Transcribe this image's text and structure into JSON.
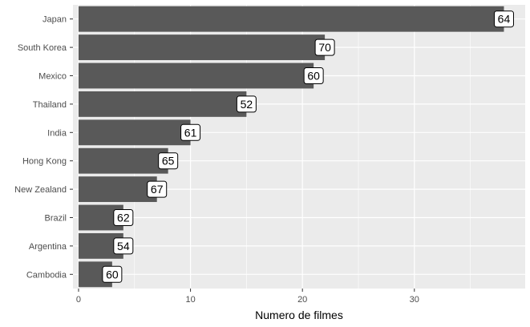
{
  "chart_data": {
    "type": "bar",
    "orientation": "horizontal",
    "title": "",
    "xlabel": "Numero de filmes",
    "ylabel": "",
    "categories": [
      "Japan",
      "South Korea",
      "Mexico",
      "Thailand",
      "India",
      "Hong Kong",
      "New Zealand",
      "Brazil",
      "Argentina",
      "Cambodia"
    ],
    "values": [
      38,
      22,
      21,
      15,
      10,
      8,
      7,
      4,
      4,
      3
    ],
    "data_labels": [
      "64",
      "70",
      "60",
      "52",
      "61",
      "65",
      "67",
      "62",
      "54",
      "60"
    ],
    "xlim": [
      -0.5,
      39.9
    ],
    "xticks": [
      0,
      10,
      20,
      30
    ],
    "xtick_labels": [
      "0",
      "10",
      "20",
      "30"
    ],
    "grid": true,
    "legend": "none",
    "colors": {
      "panel": "#ebebeb",
      "grid_major": "#ffffff",
      "bar": "#595959",
      "label_box": "#ffffff",
      "label_border": "#000000"
    }
  }
}
